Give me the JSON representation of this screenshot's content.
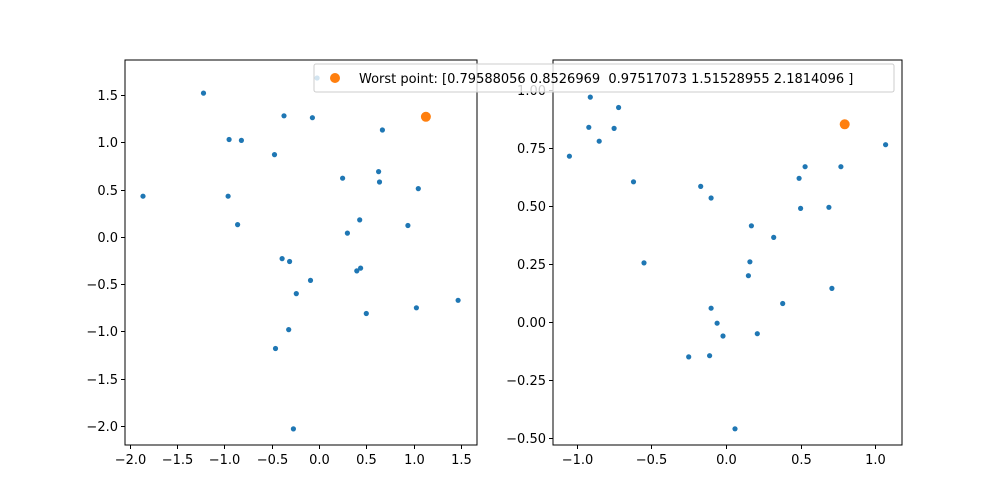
{
  "chart_data": [
    {
      "type": "scatter",
      "xlim": [
        -2.05,
        1.67
      ],
      "ylim": [
        -2.2,
        1.87
      ],
      "x_ticks": [
        -2.0,
        -1.5,
        -1.0,
        -0.5,
        0.0,
        0.5,
        1.0,
        1.5
      ],
      "y_ticks": [
        -2.0,
        -1.5,
        -1.0,
        -0.5,
        0.0,
        0.5,
        1.0,
        1.5
      ],
      "x_tick_labels": [
        "−2.0",
        "−1.5",
        "−1.0",
        "−0.5",
        "0.0",
        "0.5",
        "1.0",
        "1.5"
      ],
      "y_tick_labels": [
        "−2.0",
        "−1.5",
        "−1.0",
        "−0.5",
        "0.0",
        "0.5",
        "1.0",
        "1.5"
      ],
      "grid": false,
      "series": [
        {
          "color": "#1f77b4",
          "points": [
            [
              -1.86,
              0.43
            ],
            [
              -1.22,
              1.52
            ],
            [
              -0.95,
              1.03
            ],
            [
              -0.82,
              1.02
            ],
            [
              -0.96,
              0.43
            ],
            [
              -0.86,
              0.13
            ],
            [
              -0.47,
              0.87
            ],
            [
              -0.37,
              1.28
            ],
            [
              -0.07,
              1.26
            ],
            [
              -0.02,
              1.68
            ],
            [
              0.25,
              0.62
            ],
            [
              0.67,
              1.13
            ],
            [
              0.63,
              0.69
            ],
            [
              0.64,
              0.58
            ],
            [
              1.05,
              0.51
            ],
            [
              0.43,
              0.18
            ],
            [
              0.3,
              0.04
            ],
            [
              0.94,
              0.12
            ],
            [
              -0.39,
              -0.23
            ],
            [
              -0.31,
              -0.26
            ],
            [
              -0.09,
              -0.46
            ],
            [
              -0.24,
              -0.6
            ],
            [
              0.4,
              -0.36
            ],
            [
              0.44,
              -0.33
            ],
            [
              0.5,
              -0.81
            ],
            [
              1.03,
              -0.75
            ],
            [
              1.47,
              -0.67
            ],
            [
              -0.32,
              -0.98
            ],
            [
              -0.46,
              -1.18
            ],
            [
              -0.27,
              -2.03
            ]
          ]
        },
        {
          "color": "#ff7f0e",
          "label": "Worst point: [0.79588056 0.8526969  0.97517073 1.51528955 2.1814096 ]",
          "points": [
            [
              1.13,
              1.27
            ]
          ]
        }
      ]
    },
    {
      "type": "scatter",
      "xlim": [
        -1.16,
        1.18
      ],
      "ylim": [
        -0.53,
        1.13
      ],
      "x_ticks": [
        -1.0,
        -0.5,
        0.0,
        0.5,
        1.0
      ],
      "y_ticks": [
        -0.5,
        -0.25,
        0.0,
        0.25,
        0.5,
        0.75,
        1.0
      ],
      "x_tick_labels": [
        "−1.0",
        "−0.5",
        "0.0",
        "0.5",
        "1.0"
      ],
      "y_tick_labels": [
        "−0.50",
        "−0.25",
        "0.00",
        "0.25",
        "0.50",
        "0.75",
        "1.00"
      ],
      "grid": false,
      "series": [
        {
          "color": "#1f77b4",
          "points": [
            [
              -1.05,
              0.715
            ],
            [
              -0.91,
              0.97
            ],
            [
              -0.92,
              0.84
            ],
            [
              -0.85,
              0.78
            ],
            [
              -0.72,
              0.925
            ],
            [
              -0.75,
              0.835
            ],
            [
              -0.62,
              0.605
            ],
            [
              -0.55,
              0.255
            ],
            [
              -0.17,
              0.585
            ],
            [
              -0.1,
              0.535
            ],
            [
              0.17,
              0.415
            ],
            [
              0.32,
              0.365
            ],
            [
              0.16,
              0.26
            ],
            [
              0.15,
              0.2
            ],
            [
              0.38,
              0.08
            ],
            [
              -0.1,
              0.06
            ],
            [
              -0.06,
              -0.005
            ],
            [
              -0.02,
              -0.06
            ],
            [
              0.21,
              -0.05
            ],
            [
              -0.25,
              -0.15
            ],
            [
              -0.11,
              -0.145
            ],
            [
              0.06,
              -0.46
            ],
            [
              0.49,
              0.62
            ],
            [
              0.53,
              0.67
            ],
            [
              0.77,
              0.67
            ],
            [
              0.5,
              0.49
            ],
            [
              0.69,
              0.495
            ],
            [
              0.71,
              0.145
            ],
            [
              1.07,
              0.765
            ]
          ]
        },
        {
          "color": "#ff7f0e",
          "points": [
            [
              0.79588056,
              0.8526969
            ]
          ]
        }
      ]
    }
  ]
}
